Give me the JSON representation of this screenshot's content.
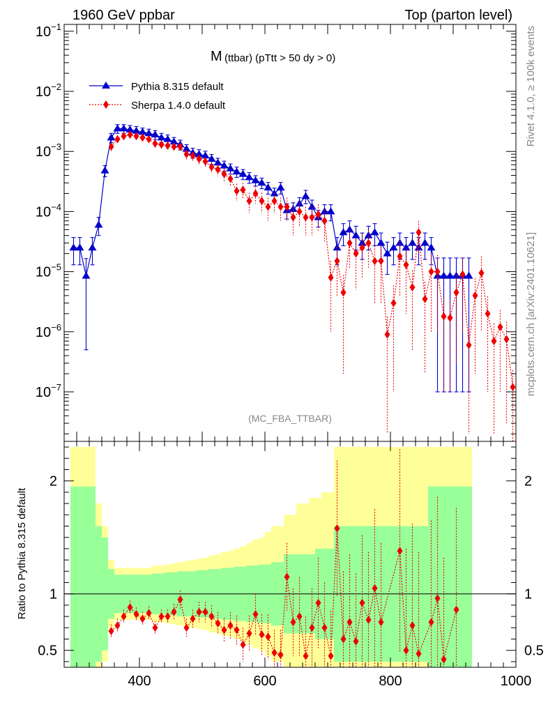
{
  "header": {
    "left_title": "1960 GeV ppbar",
    "right_title": "Top (parton level)",
    "plot_title_main": "M",
    "plot_title_sub": "(ttbar) (pTtt > 50 dy > 0)",
    "watermark": "(MC_FBA_TTBAR)",
    "side_label_top": "Rivet 4.1.0, ≥ 100k events",
    "side_label_bottom": "mcplots.cern.ch [arXiv:2401.10621]"
  },
  "colors": {
    "pythia": "#0000cc",
    "sherpa": "#ee0000",
    "band_inner": "#99ff99",
    "band_outer": "#ffff99"
  },
  "chart_data": [
    {
      "type": "line",
      "title": "M (ttbar) (pTtt > 50 dy > 0)",
      "xlabel": "",
      "ylabel": "",
      "yscale": "log",
      "xlim": [
        280,
        1000
      ],
      "ylim": [
        1.5e-08,
        0.13
      ],
      "y_ticks": [
        {
          "value": 0.1,
          "mantissa": "10",
          "exp": "−1"
        },
        {
          "value": 0.01,
          "mantissa": "10",
          "exp": "−2"
        },
        {
          "value": 0.001,
          "mantissa": "10",
          "exp": "−3"
        },
        {
          "value": 0.0001,
          "mantissa": "10",
          "exp": "−4"
        },
        {
          "value": 1e-05,
          "mantissa": "10",
          "exp": "−5"
        },
        {
          "value": 1e-06,
          "mantissa": "10",
          "exp": "−6"
        },
        {
          "value": 1e-07,
          "mantissa": "10",
          "exp": "−7"
        }
      ],
      "legend_position": "top-left",
      "series": [
        {
          "name": "Pythia 8.315 default",
          "marker": "triangle",
          "x": [
            295,
            305,
            315,
            325,
            335,
            345,
            355,
            365,
            375,
            385,
            395,
            405,
            415,
            425,
            435,
            445,
            455,
            465,
            475,
            485,
            495,
            505,
            515,
            525,
            535,
            545,
            555,
            565,
            575,
            585,
            595,
            605,
            615,
            625,
            635,
            645,
            655,
            665,
            675,
            685,
            695,
            705,
            715,
            725,
            735,
            745,
            755,
            765,
            775,
            785,
            795,
            805,
            815,
            825,
            835,
            845,
            855,
            865,
            875,
            885,
            895,
            905,
            915,
            925
          ],
          "y": [
            2.5e-05,
            2.5e-05,
            8.5e-06,
            2.5e-05,
            6e-05,
            0.00048,
            0.0017,
            0.0024,
            0.0024,
            0.0023,
            0.0022,
            0.0021,
            0.002,
            0.0019,
            0.0017,
            0.0016,
            0.00145,
            0.0013,
            0.0011,
            0.00095,
            0.0009,
            0.00085,
            0.00075,
            0.00065,
            0.00058,
            0.00052,
            0.00046,
            0.00042,
            0.00037,
            0.00033,
            0.0003,
            0.00025,
            0.0002,
            0.00025,
            0.000105,
            0.00011,
            0.000135,
            0.00018,
            0.00012,
            8e-05,
            0.0001,
            0.0001,
            2.5e-05,
            4.5e-05,
            5e-05,
            4e-05,
            3e-05,
            4e-05,
            4.5e-05,
            3e-05,
            2e-05,
            2.5e-05,
            3e-05,
            2.5e-05,
            3e-05,
            2.5e-05,
            3e-05,
            2.5e-05,
            8.5e-06,
            8.5e-06,
            8.5e-06,
            8.5e-06,
            8.5e-06,
            8.5e-06
          ],
          "err": [
            1.2e-05,
            1.2e-05,
            8e-06,
            1.2e-05,
            2e-05,
            0.0001,
            0.0003,
            0.0004,
            0.0004,
            0.0004,
            0.0004,
            0.00035,
            0.00035,
            0.00032,
            0.0003,
            0.00028,
            0.00026,
            0.00024,
            0.0002,
            0.00018,
            0.00017,
            0.00016,
            0.00014,
            0.00012,
            0.00011,
            0.0001,
            9e-05,
            8e-05,
            7.5e-05,
            6.5e-05,
            6e-05,
            5.5e-05,
            4.5e-05,
            5.5e-05,
            3e-05,
            3e-05,
            3.5e-05,
            4.5e-05,
            3.5e-05,
            2.5e-05,
            3e-05,
            3e-05,
            1.2e-05,
            1.8e-05,
            2e-05,
            1.7e-05,
            1.4e-05,
            1.7e-05,
            1.8e-05,
            1.4e-05,
            1.1e-05,
            1.2e-05,
            1.4e-05,
            1.2e-05,
            1.4e-05,
            1.2e-05,
            1.4e-05,
            1.2e-05,
            8.4e-06,
            8.4e-06,
            8.4e-06,
            8.4e-06,
            8.4e-06,
            8.4e-06
          ]
        },
        {
          "name": "Sherpa 1.4.0 default",
          "marker": "diamond",
          "x": [
            355,
            365,
            375,
            385,
            395,
            405,
            415,
            425,
            435,
            445,
            455,
            465,
            475,
            485,
            495,
            505,
            515,
            525,
            535,
            545,
            555,
            565,
            575,
            585,
            595,
            605,
            615,
            625,
            635,
            645,
            655,
            665,
            675,
            685,
            695,
            705,
            715,
            725,
            735,
            745,
            755,
            765,
            775,
            785,
            795,
            805,
            815,
            825,
            835,
            845,
            855,
            865,
            875,
            885,
            895,
            905,
            915,
            925,
            935,
            945,
            955,
            965,
            975,
            985,
            995
          ],
          "y": [
            0.0012,
            0.0016,
            0.0018,
            0.0019,
            0.0018,
            0.0017,
            0.0016,
            0.00135,
            0.0013,
            0.00125,
            0.0012,
            0.0012,
            0.0009,
            0.00085,
            0.00075,
            0.00068,
            0.00055,
            0.0005,
            0.00042,
            0.00035,
            0.00022,
            0.00023,
            0.00015,
            0.0002,
            0.00015,
            0.00012,
            0.00015,
            0.00012,
            0.00012,
            8e-05,
            0.0001,
            8e-05,
            8e-05,
            9e-05,
            7e-05,
            8e-06,
            1.5e-05,
            4.5e-06,
            3e-05,
            2e-05,
            2.5e-05,
            3e-05,
            1.5e-05,
            1.5e-05,
            9e-07,
            3e-06,
            1.8e-05,
            1.3e-05,
            5.5e-06,
            4.5e-05,
            3.5e-06,
            1e-05,
            1e-05,
            1.8e-06,
            1.7e-06,
            4.5e-06,
            9e-06,
            6e-07,
            4e-06,
            9.5e-06,
            2e-06,
            7e-07,
            1.2e-06,
            7.5e-07,
            1.2e-07
          ],
          "err": [
            0.0002,
            0.00025,
            0.00025,
            0.00025,
            0.00025,
            0.00025,
            0.00024,
            0.00022,
            0.00021,
            0.0002,
            0.00019,
            0.00019,
            0.00016,
            0.00015,
            0.00014,
            0.00013,
            0.00012,
            0.00011,
            0.0001,
            9e-05,
            7e-05,
            7e-05,
            5.5e-05,
            6.5e-05,
            5.5e-05,
            5e-05,
            5.5e-05,
            5e-05,
            5e-05,
            4e-05,
            4.5e-05,
            4e-05,
            4e-05,
            4.2e-05,
            3.8e-05,
            7e-06,
            1.1e-05,
            4.3e-06,
            1.9e-05,
            1.5e-05,
            1.7e-05,
            1.9e-05,
            1.2e-05,
            1.2e-05,
            8.8e-07,
            2.9e-06,
            1.4e-05,
            1.1e-05,
            5e-06,
            2.5e-05,
            3.3e-06,
            9e-06,
            9e-06,
            1.7e-06,
            1.6e-06,
            4.2e-06,
            8e-06,
            5.8e-07,
            3.8e-06,
            8.5e-06,
            1.9e-06,
            6.8e-07,
            1.1e-06,
            7.2e-07,
            1.1e-07
          ]
        }
      ]
    },
    {
      "type": "line",
      "title": "",
      "xlabel": "",
      "ylabel": "Ratio to Pythia 8.315 default",
      "xlim": [
        280,
        1000
      ],
      "ylim": [
        0.35,
        2.35
      ],
      "x_ticks": [
        "400",
        "600",
        "800",
        "1000"
      ],
      "y_ticks": [
        "0.5",
        "1",
        "2"
      ],
      "reference_line": 1,
      "bands": {
        "x": [
          295,
          305,
          315,
          325,
          335,
          345,
          355,
          365,
          375,
          385,
          395,
          405,
          415,
          425,
          435,
          445,
          455,
          465,
          475,
          485,
          495,
          505,
          515,
          525,
          535,
          545,
          555,
          565,
          575,
          585,
          595,
          605,
          615,
          625,
          635,
          645,
          655,
          665,
          675,
          685,
          695,
          705,
          715,
          725,
          735,
          745,
          755,
          765,
          775,
          785,
          795,
          805,
          815,
          825,
          835,
          845,
          855,
          865,
          875,
          885,
          895,
          905,
          915,
          925
        ],
        "inner": [
          0.95,
          0.95,
          0.95,
          0.95,
          0.6,
          0.5,
          0.22,
          0.17,
          0.17,
          0.17,
          0.17,
          0.17,
          0.17,
          0.18,
          0.18,
          0.19,
          0.19,
          0.2,
          0.2,
          0.2,
          0.21,
          0.21,
          0.22,
          0.22,
          0.23,
          0.23,
          0.24,
          0.24,
          0.25,
          0.25,
          0.26,
          0.26,
          0.28,
          0.28,
          0.35,
          0.35,
          0.35,
          0.35,
          0.35,
          0.4,
          0.4,
          0.4,
          0.6,
          0.6,
          0.6,
          0.6,
          0.6,
          0.6,
          0.6,
          0.6,
          0.6,
          0.6,
          0.6,
          0.6,
          0.6,
          0.6,
          0.6,
          0.95,
          0.95,
          0.95,
          0.95,
          0.95,
          0.95,
          0.95
        ],
        "outer": [
          1.3,
          1.3,
          1.3,
          1.3,
          0.8,
          0.6,
          0.3,
          0.23,
          0.23,
          0.23,
          0.23,
          0.23,
          0.23,
          0.25,
          0.25,
          0.26,
          0.27,
          0.28,
          0.29,
          0.3,
          0.31,
          0.32,
          0.34,
          0.35,
          0.37,
          0.38,
          0.4,
          0.42,
          0.45,
          0.48,
          0.5,
          0.55,
          0.6,
          0.6,
          0.7,
          0.7,
          0.8,
          0.8,
          0.85,
          0.85,
          0.9,
          0.9,
          1.3,
          1.3,
          1.3,
          1.3,
          1.3,
          1.3,
          1.3,
          1.3,
          1.3,
          1.3,
          1.3,
          1.3,
          1.3,
          1.3,
          1.3,
          1.3,
          1.3,
          1.3,
          1.3,
          1.3,
          1.3,
          1.3
        ]
      },
      "series": [
        {
          "name": "Sherpa 1.4.0 default",
          "marker": "diamond",
          "x": [
            355,
            365,
            375,
            385,
            395,
            405,
            415,
            425,
            435,
            445,
            455,
            465,
            475,
            485,
            495,
            505,
            515,
            525,
            535,
            545,
            555,
            565,
            575,
            585,
            595,
            605,
            615,
            625,
            635,
            645,
            655,
            665,
            675,
            685,
            695,
            705,
            715,
            725,
            735,
            745,
            755,
            765,
            775,
            785,
            815,
            825,
            835,
            845,
            865,
            875,
            885,
            905
          ],
          "y": [
            0.67,
            0.72,
            0.8,
            0.88,
            0.82,
            0.78,
            0.83,
            0.7,
            0.8,
            0.8,
            0.84,
            0.95,
            0.7,
            0.78,
            0.84,
            0.84,
            0.8,
            0.74,
            0.68,
            0.72,
            0.68,
            0.55,
            0.65,
            0.82,
            0.64,
            0.62,
            0.48,
            0.46,
            1.15,
            0.75,
            0.8,
            0.45,
            0.7,
            0.92,
            0.7,
            0.45,
            1.58,
            0.6,
            0.75,
            0.58,
            0.92,
            0.77,
            1.05,
            0.75,
            1.38,
            0.5,
            0.72,
            0.47,
            0.75,
            0.96,
            0.42,
            0.86
          ],
          "err": [
            0.06,
            0.06,
            0.06,
            0.06,
            0.06,
            0.06,
            0.06,
            0.06,
            0.06,
            0.06,
            0.07,
            0.08,
            0.08,
            0.08,
            0.09,
            0.09,
            0.1,
            0.1,
            0.11,
            0.12,
            0.13,
            0.15,
            0.16,
            0.18,
            0.18,
            0.2,
            0.2,
            0.22,
            0.3,
            0.3,
            0.35,
            0.35,
            0.35,
            0.4,
            0.4,
            0.4,
            0.6,
            0.6,
            0.6,
            0.6,
            0.6,
            0.6,
            0.7,
            0.7,
            0.9,
            0.9,
            0.9,
            0.9,
            0.9,
            0.9,
            0.9,
            0.9
          ]
        }
      ]
    }
  ]
}
